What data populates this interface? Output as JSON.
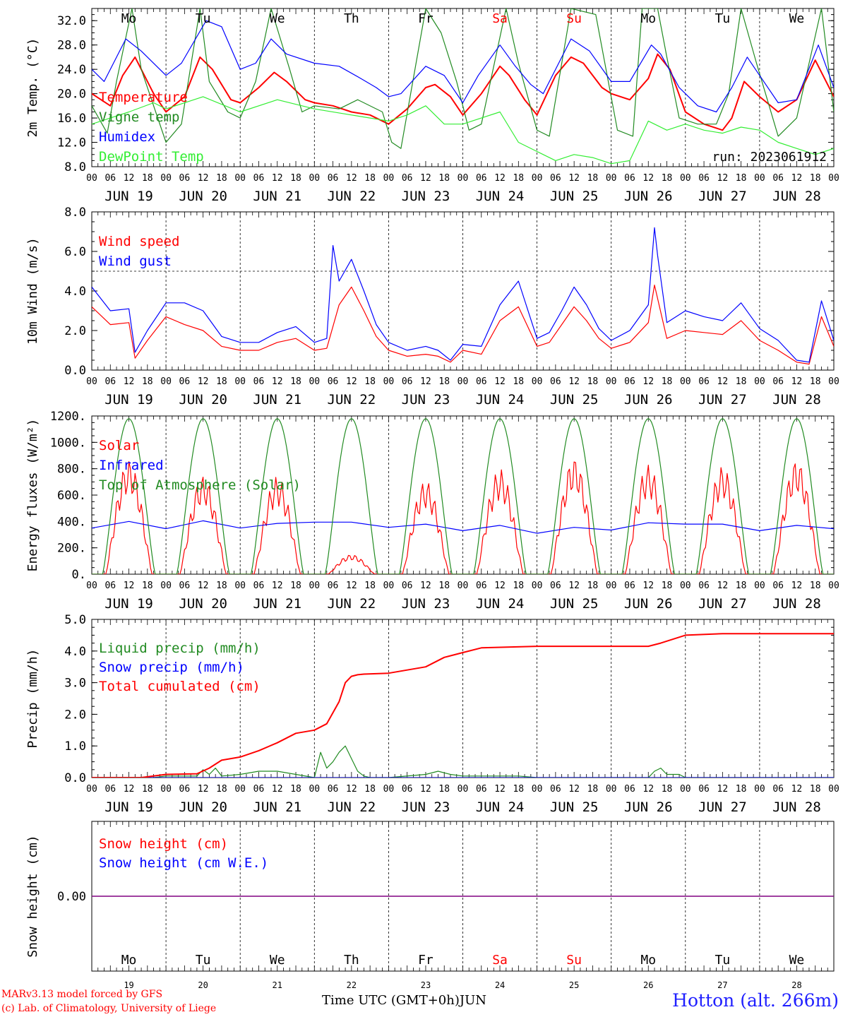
{
  "days": [
    "19",
    "20",
    "21",
    "22",
    "23",
    "24",
    "25",
    "26",
    "27",
    "28"
  ],
  "month": "JUN",
  "weekdays": [
    "Mo",
    "Tu",
    "We",
    "Th",
    "Fr",
    "Sa",
    "Su",
    "Mo",
    "Tu",
    "We"
  ],
  "weekend_indices": [
    5,
    6
  ],
  "hour_ticks": [
    "00",
    "06",
    "12",
    "18"
  ],
  "colors": {
    "red": "#ff0000",
    "green": "#228b22",
    "blue": "#0000ff",
    "lightgreen": "#33ee33",
    "purple": "#800080"
  },
  "footer": {
    "model": "MARv3.13 model forced by GFS",
    "copyright": "(c) Lab. of Climatology, University of Liege",
    "x_title": "Time UTC (GMT+0h)",
    "station": "Hotton (alt. 266m)"
  },
  "chart_data": [
    {
      "type": "line",
      "ylabel": "2m Temp. (°C)",
      "ylim": [
        8,
        34
      ],
      "yticks": [
        "8.0",
        "12.0",
        "16.0",
        "20.0",
        "24.0",
        "28.0",
        "32.0"
      ],
      "annotation": "run: 2023061912",
      "x_unit": "hours since JUN 19 00 UTC",
      "series": [
        {
          "name": "Temperature",
          "color": "#ff0000",
          "x": [
            0,
            6,
            10,
            14,
            20,
            24,
            30,
            35,
            39,
            45,
            48,
            54,
            59,
            63,
            69,
            72,
            78,
            84,
            90,
            96,
            102,
            108,
            111,
            116,
            120,
            126,
            132,
            135,
            140,
            144,
            150,
            155,
            159,
            165,
            168,
            174,
            180,
            183,
            187,
            192,
            198,
            204,
            207,
            211,
            216,
            222,
            228,
            234,
            240
          ],
          "y": [
            20,
            18,
            23,
            26,
            20,
            17,
            19.5,
            26,
            24,
            19,
            18.5,
            21,
            23.5,
            22,
            19,
            18.5,
            18,
            17,
            16.5,
            15,
            17.5,
            21,
            21.5,
            19.5,
            16.5,
            20,
            24.5,
            23,
            19,
            16.5,
            23,
            26,
            25,
            21,
            20,
            19,
            22.5,
            26.5,
            24,
            17,
            15,
            14,
            16,
            22,
            19.5,
            17,
            19,
            25.5,
            19.5
          ]
        },
        {
          "name": "Vigne temp",
          "color": "#228b22",
          "x": [
            0,
            5,
            8,
            13,
            16,
            24,
            29,
            35,
            38,
            44,
            48,
            53,
            58,
            64,
            68,
            72,
            80,
            86,
            94,
            97,
            100,
            108,
            113,
            118,
            122,
            126,
            134,
            138,
            144,
            148,
            155,
            163,
            170,
            175,
            178,
            183,
            186,
            190,
            196,
            202,
            206,
            210,
            215,
            222,
            228,
            236,
            240
          ],
          "y": [
            18,
            13.5,
            22,
            34,
            24,
            12,
            15,
            34,
            22,
            17,
            16,
            22,
            34,
            24,
            17,
            18,
            17.5,
            19,
            17,
            12,
            11,
            34,
            30,
            22,
            14,
            15,
            34,
            25,
            14,
            13,
            34,
            33,
            14,
            13,
            34,
            34,
            26,
            16,
            15,
            15,
            20,
            34,
            25,
            13,
            16,
            34,
            17
          ]
        },
        {
          "name": "Humidex",
          "color": "#0000ff",
          "x": [
            0,
            4,
            11,
            16,
            24,
            29,
            37,
            42,
            48,
            53,
            58,
            63,
            72,
            80,
            87,
            92,
            96,
            100,
            108,
            114,
            120,
            125,
            132,
            137,
            142,
            146,
            155,
            161,
            168,
            174,
            181,
            184,
            190,
            196,
            202,
            207,
            212,
            216,
            222,
            228,
            235,
            240
          ],
          "y": [
            24,
            22,
            29,
            27,
            23,
            25,
            32,
            31,
            24,
            25,
            29,
            26.5,
            25,
            24.5,
            22.5,
            21,
            19.5,
            20,
            24.5,
            23,
            18.5,
            23,
            28,
            24.5,
            21.5,
            20,
            29,
            27,
            22,
            22,
            28,
            26.5,
            21,
            18,
            17,
            21,
            26,
            23,
            18.5,
            19,
            28,
            21
          ]
        },
        {
          "name": "DewPoint Temp",
          "color": "#33ee33",
          "x": [
            0,
            6,
            12,
            20,
            24,
            36,
            48,
            60,
            72,
            84,
            96,
            102,
            108,
            114,
            120,
            126,
            132,
            138,
            144,
            150,
            156,
            162,
            168,
            174,
            180,
            186,
            192,
            198,
            204,
            210,
            216,
            222,
            228,
            234,
            240
          ],
          "y": [
            15,
            16,
            17,
            18.5,
            17.5,
            19.5,
            17,
            19,
            17.5,
            16.5,
            15.5,
            16.5,
            18,
            15,
            15,
            16,
            17,
            12,
            10.5,
            9,
            10,
            9.5,
            8.5,
            9,
            15.5,
            14,
            15,
            14,
            13.5,
            14.5,
            14,
            12,
            11,
            10,
            11
          ]
        }
      ]
    },
    {
      "type": "line",
      "ylabel": "10m Wind (m/s)",
      "ylim": [
        0,
        8
      ],
      "yticks": [
        "0.0",
        "2.0",
        "4.0",
        "6.0",
        "8.0"
      ],
      "reference_line": 5,
      "series": [
        {
          "name": "Wind speed",
          "color": "#ff0000",
          "x": [
            0,
            6,
            12,
            14,
            18,
            24,
            30,
            36,
            42,
            48,
            54,
            60,
            66,
            72,
            76,
            80,
            84,
            88,
            92,
            96,
            102,
            108,
            112,
            116,
            120,
            126,
            132,
            138,
            144,
            148,
            152,
            156,
            160,
            164,
            168,
            174,
            180,
            182,
            186,
            192,
            198,
            204,
            210,
            216,
            222,
            228,
            232,
            236,
            240
          ],
          "y": [
            3.2,
            2.3,
            2.4,
            0.6,
            1.5,
            2.7,
            2.3,
            2,
            1.2,
            1,
            1,
            1.4,
            1.6,
            1,
            1.1,
            3.3,
            4.2,
            3,
            1.7,
            1,
            0.7,
            0.8,
            0.7,
            0.4,
            1,
            0.8,
            2.5,
            3.2,
            1.2,
            1.4,
            2.3,
            3.2,
            2.5,
            1.6,
            1.1,
            1.4,
            2.4,
            4.3,
            1.6,
            2,
            1.9,
            1.8,
            2.5,
            1.5,
            1,
            0.4,
            0.3,
            2.7,
            1.2
          ]
        },
        {
          "name": "Wind gust",
          "color": "#0000ff",
          "x": [
            0,
            6,
            12,
            14,
            18,
            24,
            30,
            36,
            42,
            48,
            54,
            60,
            66,
            72,
            76,
            78,
            80,
            84,
            88,
            92,
            96,
            102,
            108,
            112,
            116,
            120,
            126,
            132,
            138,
            144,
            148,
            152,
            156,
            160,
            164,
            168,
            174,
            180,
            182,
            183,
            186,
            192,
            198,
            204,
            210,
            216,
            222,
            228,
            232,
            236,
            240
          ],
          "y": [
            4.2,
            3,
            3.1,
            0.9,
            2,
            3.4,
            3.4,
            3,
            1.7,
            1.4,
            1.4,
            1.9,
            2.2,
            1.4,
            1.6,
            6.3,
            4.5,
            5.6,
            4,
            2.3,
            1.4,
            1,
            1.2,
            1,
            0.5,
            1.3,
            1.2,
            3.3,
            4.5,
            1.6,
            1.9,
            3,
            4.2,
            3.3,
            2.1,
            1.5,
            2,
            3.3,
            7.2,
            5.8,
            2.4,
            3,
            2.7,
            2.5,
            3.4,
            2.1,
            1.5,
            0.5,
            0.4,
            3.5,
            1.5
          ]
        }
      ]
    },
    {
      "type": "line",
      "ylabel": "Energy fluxes (W/m²)",
      "ylim": [
        0,
        1200
      ],
      "yticks": [
        "0.",
        "200.",
        "400.",
        "600.",
        "800.",
        "1000.",
        "1200."
      ],
      "series": [
        {
          "name": "Solar",
          "color": "#ff0000",
          "diurnal_peaks": [
            870,
            750,
            740,
            150,
            710,
            800,
            890,
            830,
            820,
            870
          ]
        },
        {
          "name": "Infrared",
          "color": "#0000ff",
          "x": [
            0,
            12,
            24,
            36,
            48,
            60,
            72,
            84,
            96,
            108,
            120,
            132,
            144,
            156,
            168,
            180,
            192,
            204,
            216,
            228,
            240
          ],
          "y": [
            350,
            400,
            345,
            405,
            350,
            385,
            395,
            395,
            355,
            380,
            330,
            370,
            310,
            355,
            335,
            390,
            380,
            380,
            330,
            370,
            345
          ]
        },
        {
          "name": "Top of Atmosphere (Solar)",
          "color": "#228b22",
          "diurnal_peaks": [
            1180,
            1180,
            1180,
            1180,
            1180,
            1180,
            1180,
            1180,
            1180,
            1180
          ]
        }
      ]
    },
    {
      "type": "line",
      "ylabel": "Precip (mm/h)",
      "ylim": [
        0,
        5
      ],
      "yticks": [
        "0.0",
        "1.0",
        "2.0",
        "3.0",
        "4.0",
        "5.0"
      ],
      "series": [
        {
          "name": "Liquid precip (mm/h)",
          "color": "#228b22",
          "x": [
            0,
            20,
            24,
            34,
            36,
            38,
            40,
            42,
            48,
            54,
            60,
            66,
            72,
            74,
            76,
            78,
            80,
            82,
            84,
            86,
            88,
            90,
            96,
            108,
            112,
            116,
            120,
            132,
            138,
            144,
            180,
            182,
            184,
            186,
            190,
            192,
            240
          ],
          "y": [
            0,
            0,
            0.05,
            0.05,
            0.25,
            0.1,
            0.3,
            0.05,
            0.1,
            0.2,
            0.2,
            0.1,
            0,
            0.8,
            0.3,
            0.5,
            0.8,
            1,
            0.6,
            0.2,
            0.05,
            0,
            0,
            0.1,
            0.2,
            0.1,
            0.05,
            0.05,
            0.05,
            0,
            0,
            0.2,
            0.3,
            0.1,
            0.1,
            0,
            0
          ]
        },
        {
          "name": "Snow precip (mm/h)",
          "color": "#0000ff",
          "x": [
            0,
            240
          ],
          "y": [
            0,
            0
          ]
        },
        {
          "name": "Total cumulated (cm)",
          "color": "#ff0000",
          "x": [
            0,
            16,
            24,
            34,
            38,
            42,
            48,
            54,
            60,
            66,
            72,
            76,
            80,
            82,
            84,
            86,
            88,
            96,
            108,
            114,
            120,
            126,
            144,
            168,
            180,
            184,
            192,
            204,
            240
          ],
          "y": [
            0,
            0,
            0.1,
            0.12,
            0.3,
            0.55,
            0.65,
            0.85,
            1.1,
            1.4,
            1.5,
            1.7,
            2.4,
            3.0,
            3.2,
            3.25,
            3.27,
            3.3,
            3.5,
            3.8,
            3.95,
            4.1,
            4.15,
            4.15,
            4.15,
            4.25,
            4.5,
            4.55,
            4.55
          ]
        }
      ]
    },
    {
      "type": "line",
      "ylabel": "Snow height (cm)",
      "yticks": [
        "0.00"
      ],
      "series": [
        {
          "name": "Snow height (cm)",
          "color": "#ff0000",
          "x": [
            0,
            240
          ],
          "y": [
            0,
            0
          ]
        },
        {
          "name": "Snow height (cm W.E.)",
          "color": "#0000ff",
          "x": [
            0,
            240
          ],
          "y": [
            0,
            0
          ]
        }
      ]
    }
  ]
}
